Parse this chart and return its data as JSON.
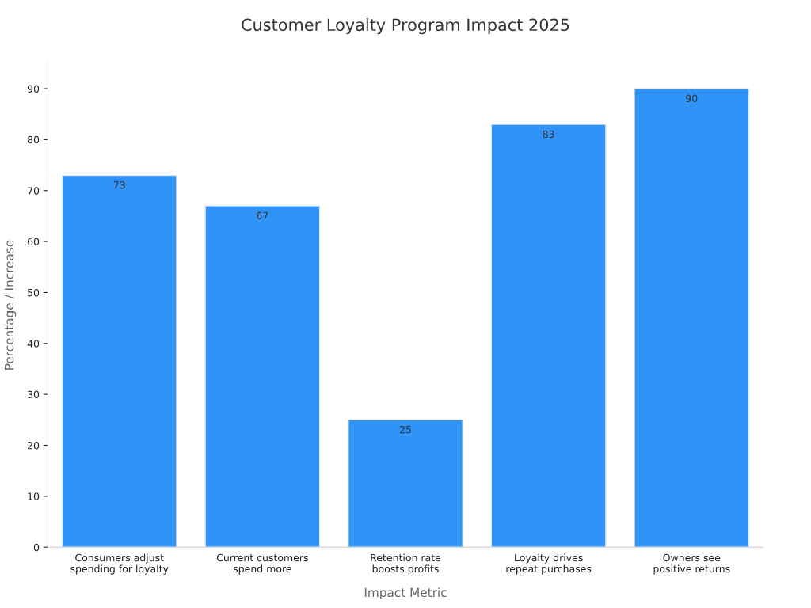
{
  "chart_data": {
    "type": "bar",
    "title": "Customer Loyalty Program Impact 2025",
    "xlabel": "Impact Metric",
    "ylabel": "Percentage / Increase",
    "categories": [
      "Consumers adjust\nspending for loyalty",
      "Current customers\nspend more",
      "Retention rate\nboosts profits",
      "Loyalty drives\nrepeat purchases",
      "Owners see\npositive returns"
    ],
    "values": [
      73,
      67,
      25,
      83,
      90
    ],
    "color": "#2f93f8",
    "ylim": [
      0,
      95
    ],
    "yticks": [
      0,
      10,
      20,
      30,
      40,
      50,
      60,
      70,
      80,
      90
    ],
    "data_labels": true,
    "grid": false,
    "legend": false
  }
}
